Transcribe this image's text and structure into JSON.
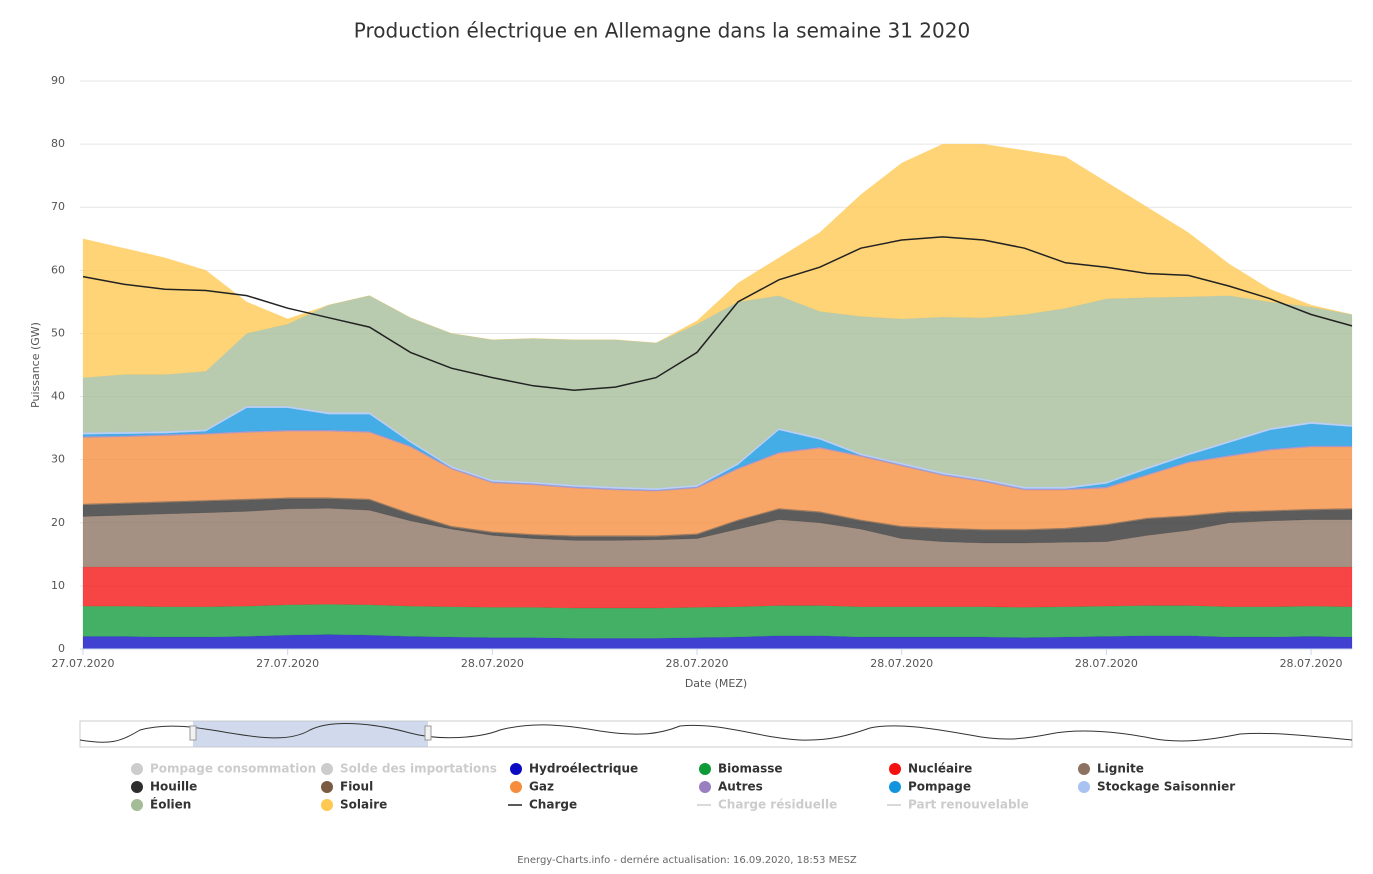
{
  "chart_data": {
    "type": "stacked_area",
    "title": "Production électrique en Allemagne dans la semaine 31 2020",
    "y_label": "Puissance (GW)",
    "x_label": "Date (MEZ)",
    "footer": "Energy-Charts.info - dernére actualisation: 16.09.2020, 18:53 MESZ",
    "ylim": [
      0,
      90
    ],
    "yticks": [
      0,
      10,
      20,
      30,
      40,
      50,
      60,
      70,
      80,
      90
    ],
    "grid": true,
    "categories": [
      "27.07.2020",
      null,
      null,
      null,
      null,
      "27.07.2020",
      null,
      null,
      null,
      null,
      "28.07.2020",
      null,
      null,
      null,
      null,
      "28.07.2020",
      null,
      null,
      null,
      null,
      "28.07.2020",
      null,
      null,
      null,
      null,
      "28.07.2020",
      null,
      null,
      null,
      null,
      "28.07.2020",
      null
    ],
    "series": [
      {
        "name": "Pompage consommation",
        "color": "#c8c8c8",
        "kind": "area",
        "visible": false
      },
      {
        "name": "Solde des importations",
        "color": "#c8c8c8",
        "kind": "area",
        "visible": false
      },
      {
        "name": "Hydroélectrique",
        "color": "#0b0bc4",
        "kind": "area",
        "visible": true,
        "values": [
          2,
          2,
          1.9,
          1.9,
          2,
          2.2,
          2.3,
          2.2,
          2,
          1.9,
          1.8,
          1.8,
          1.7,
          1.7,
          1.7,
          1.8,
          1.9,
          2.1,
          2.1,
          1.9,
          1.9,
          1.9,
          1.9,
          1.8,
          1.9,
          2,
          2.1,
          2.1,
          1.9,
          1.9,
          2,
          1.9
        ]
      },
      {
        "name": "Biomasse",
        "color": "#0f9a3a",
        "kind": "area",
        "visible": true,
        "values": [
          4.8,
          4.8,
          4.8,
          4.8,
          4.8,
          4.8,
          4.8,
          4.8,
          4.8,
          4.8,
          4.8,
          4.8,
          4.8,
          4.8,
          4.8,
          4.8,
          4.8,
          4.8,
          4.8,
          4.8,
          4.8,
          4.8,
          4.8,
          4.8,
          4.8,
          4.8,
          4.8,
          4.8,
          4.8,
          4.8,
          4.8,
          4.8
        ]
      },
      {
        "name": "Nucléaire",
        "color": "#f50f0f",
        "kind": "area",
        "visible": true,
        "values": [
          6.2,
          6.2,
          6.3,
          6.3,
          6.2,
          6,
          5.9,
          6,
          6.2,
          6.3,
          6.4,
          6.4,
          6.5,
          6.5,
          6.5,
          6.4,
          6.3,
          6.1,
          6.1,
          6.3,
          6.3,
          6.3,
          6.3,
          6.4,
          6.3,
          6.2,
          6.1,
          6.1,
          6.3,
          6.3,
          6.2,
          6.3
        ]
      },
      {
        "name": "Lignite",
        "color": "#8c7260",
        "kind": "area",
        "visible": true,
        "values": [
          8,
          8.2,
          8.4,
          8.6,
          8.8,
          9.2,
          9.3,
          9,
          7.3,
          6,
          5,
          4.5,
          4.2,
          4.2,
          4.3,
          4.5,
          6,
          7.5,
          7,
          6,
          4.5,
          4,
          3.8,
          3.8,
          3.9,
          4,
          5,
          5.8,
          7,
          7.3,
          7.5,
          7.5
        ]
      },
      {
        "name": "Houille",
        "color": "#2e2e2e",
        "kind": "area",
        "visible": true,
        "values": [
          1.8,
          1.8,
          1.8,
          1.8,
          1.8,
          1.6,
          1.5,
          1.6,
          1,
          0.3,
          0.4,
          0.5,
          0.6,
          0.6,
          0.5,
          0.6,
          1.3,
          1.6,
          1.6,
          1.3,
          1.8,
          2,
          2,
          2,
          2.1,
          2.6,
          2.6,
          2.2,
          1.6,
          1.5,
          1.5,
          1.6
        ]
      },
      {
        "name": "Fioul",
        "color": "#7a5a40",
        "kind": "area",
        "visible": true,
        "values": [
          0.2,
          0.2,
          0.2,
          0.2,
          0.2,
          0.2,
          0.2,
          0.2,
          0.2,
          0.2,
          0.2,
          0.2,
          0.2,
          0.2,
          0.2,
          0.2,
          0.2,
          0.2,
          0.2,
          0.2,
          0.2,
          0.2,
          0.2,
          0.2,
          0.2,
          0.2,
          0.2,
          0.2,
          0.2,
          0.2,
          0.2,
          0.2
        ]
      },
      {
        "name": "Gaz",
        "color": "#f58d3c",
        "kind": "area",
        "visible": true,
        "values": [
          10.5,
          10.4,
          10.4,
          10.4,
          10.5,
          10.5,
          10.5,
          10.5,
          10.5,
          9,
          7.7,
          7.8,
          7.5,
          7.2,
          7,
          7.2,
          8,
          8.7,
          10,
          10,
          9.5,
          8.3,
          7.5,
          6.2,
          6,
          5.7,
          6.7,
          8.3,
          8.7,
          9.5,
          9.8,
          9.7
        ]
      },
      {
        "name": "Autres",
        "color": "#9a7fc0",
        "kind": "area",
        "visible": true,
        "values": [
          0.2,
          0.2,
          0.2,
          0.2,
          0.2,
          0.2,
          0.2,
          0.2,
          0.2,
          0.2,
          0.2,
          0.2,
          0.2,
          0.2,
          0.2,
          0.2,
          0.2,
          0.2,
          0.2,
          0.2,
          0.2,
          0.2,
          0.2,
          0.2,
          0.2,
          0.2,
          0.2,
          0.2,
          0.2,
          0.2,
          0.2,
          0.2
        ]
      },
      {
        "name": "Pompage",
        "color": "#1196de",
        "kind": "area",
        "visible": true,
        "values": [
          0.3,
          0.3,
          0.2,
          0.3,
          3.7,
          3.5,
          2.5,
          2.7,
          0.5,
          0,
          0,
          0,
          0,
          0,
          0,
          0,
          0.5,
          3.5,
          1.2,
          0,
          0,
          0,
          0,
          0,
          0,
          0.5,
          0.8,
          1,
          2,
          3,
          3.5,
          3
        ]
      },
      {
        "name": "Stockage Saisonnier",
        "color": "#a9c2f2",
        "kind": "area",
        "visible": true,
        "values": [
          0.3,
          0.3,
          0.3,
          0.3,
          0.3,
          0.3,
          0.3,
          0.3,
          0.3,
          0.3,
          0.3,
          0.3,
          0.3,
          0.3,
          0.3,
          0.3,
          0.3,
          0.3,
          0.3,
          0.3,
          0.3,
          0.3,
          0.3,
          0.3,
          0.3,
          0.3,
          0.3,
          0.3,
          0.3,
          0.3,
          0.3,
          0.3
        ]
      },
      {
        "name": "Éolien",
        "color": "#a4bd98",
        "kind": "area",
        "visible": true,
        "values": [
          8.7,
          9.1,
          9,
          9.2,
          11.5,
          13,
          17,
          18.5,
          19.5,
          21,
          22.2,
          22.7,
          23,
          23.3,
          23,
          25.5,
          25.5,
          21,
          20,
          21.7,
          22.8,
          24.6,
          25.5,
          27.3,
          28.3,
          29,
          26.9,
          24.8,
          23,
          20,
          18.2,
          17.5
        ]
      },
      {
        "name": "Solaire",
        "color": "#ffc850",
        "kind": "area",
        "visible": true,
        "values": [
          22,
          20,
          18.5,
          16,
          5,
          0.8,
          0,
          0,
          0,
          0,
          0,
          0,
          0,
          0,
          0,
          0.5,
          3,
          6,
          12.5,
          19.3,
          24.7,
          27.4,
          27.5,
          26,
          24,
          18.5,
          14.3,
          10.2,
          5,
          2,
          0.3,
          0
        ]
      },
      {
        "name": "Charge",
        "color": "#222222",
        "kind": "line",
        "visible": true,
        "values": [
          59,
          57.8,
          57,
          56.8,
          56,
          54,
          52.5,
          51,
          47,
          44.5,
          43,
          41.7,
          41,
          41.5,
          43,
          47,
          55,
          58.5,
          60.5,
          63.5,
          64.8,
          65.3,
          64.8,
          63.5,
          61.2,
          60.5,
          59.5,
          59.2,
          57.5,
          55.5,
          53,
          51.2
        ]
      },
      {
        "name": "Charge résiduelle",
        "color": "#c8c8c8",
        "kind": "line",
        "visible": false
      },
      {
        "name": "Part renouvelable",
        "color": "#c8c8c8",
        "kind": "line",
        "visible": false
      }
    ]
  }
}
